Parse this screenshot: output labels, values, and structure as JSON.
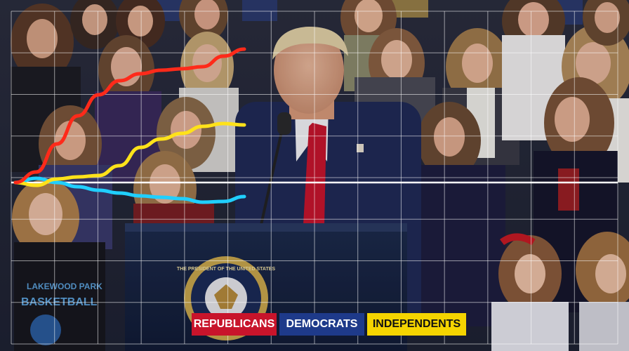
{
  "chart_data": {
    "type": "line",
    "title": "",
    "xlabel": "",
    "ylabel": "",
    "grid": true,
    "baseline": 0,
    "ylim": [
      -5,
      20
    ],
    "xlim": [
      0,
      33
    ],
    "x": [
      0,
      3,
      6,
      9,
      12,
      15,
      18,
      21,
      24,
      27,
      30,
      33
    ],
    "series": [
      {
        "name": "REPUBLICANS",
        "color": "#ff2a1a",
        "values": [
          0,
          1.5,
          5.5,
          9.5,
          12.5,
          14.5,
          15.5,
          16,
          16.2,
          16.5,
          18,
          19
        ]
      },
      {
        "name": "DEMOCRATS",
        "color": "#20cfff",
        "values": [
          0,
          0.6,
          0,
          -0.6,
          -1.1,
          -1.5,
          -1.9,
          -2.1,
          -2.3,
          -2.8,
          -2.7,
          -2.0
        ]
      },
      {
        "name": "INDEPENDENTS",
        "color": "#ffe21a",
        "values": [
          0,
          -0.4,
          0.5,
          0.8,
          1.0,
          2.4,
          5.0,
          6.2,
          7.0,
          8.0,
          8.4,
          8.2
        ]
      }
    ],
    "legend_position": "bottom-center"
  },
  "legend": {
    "republicans": "REPUBLICANS",
    "democrats": "DEMOCRATS",
    "independents": "INDEPENDENTS"
  },
  "photo": {
    "podium_seal_text": "THE PRESIDENT OF THE UNITED STATES",
    "shirt_text": "BASKETBALL",
    "shirt_text_top": "LAKEWOOD PARK"
  }
}
